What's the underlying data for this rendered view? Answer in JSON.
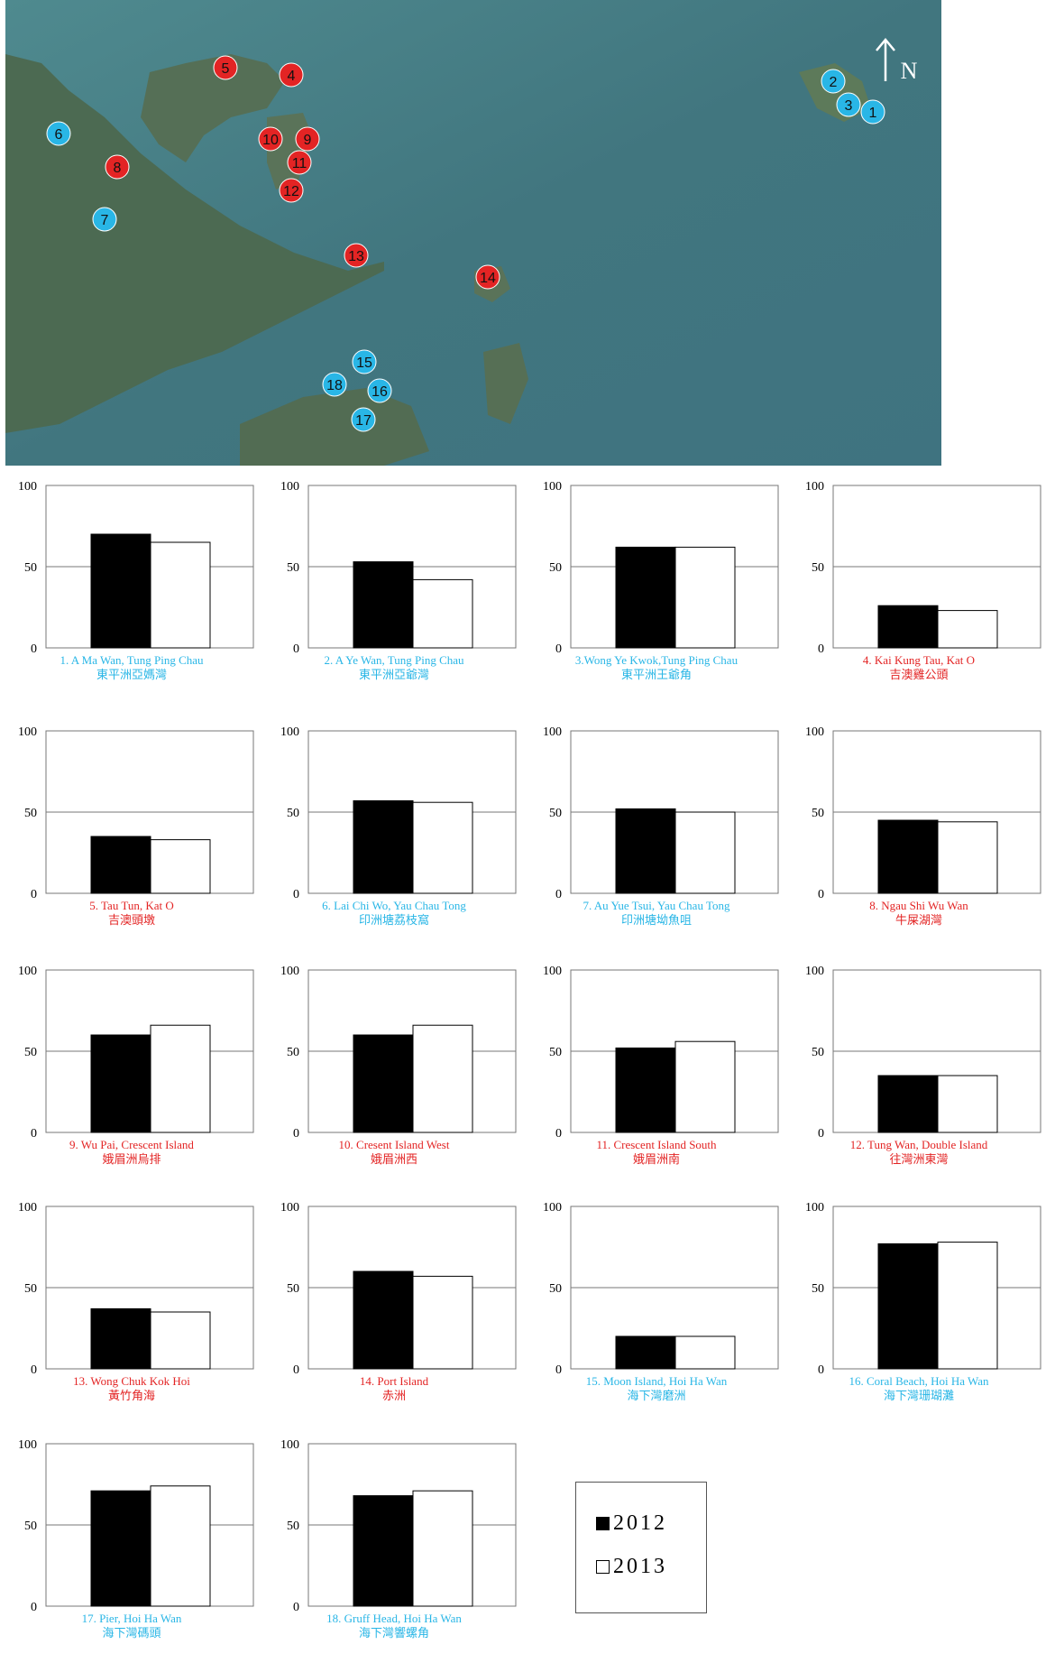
{
  "map": {
    "north_label": "N",
    "markers": [
      {
        "n": "1",
        "color": "#29b6e6"
      },
      {
        "n": "2",
        "color": "#29b6e6"
      },
      {
        "n": "3",
        "color": "#29b6e6"
      },
      {
        "n": "4",
        "color": "#e32424"
      },
      {
        "n": "5",
        "color": "#e32424"
      },
      {
        "n": "6",
        "color": "#29b6e6"
      },
      {
        "n": "7",
        "color": "#29b6e6"
      },
      {
        "n": "8",
        "color": "#e32424"
      },
      {
        "n": "9",
        "color": "#e32424"
      },
      {
        "n": "10",
        "color": "#e32424"
      },
      {
        "n": "11",
        "color": "#e32424"
      },
      {
        "n": "12",
        "color": "#e32424"
      },
      {
        "n": "13",
        "color": "#e32424"
      },
      {
        "n": "14",
        "color": "#e32424"
      },
      {
        "n": "15",
        "color": "#29b6e6"
      },
      {
        "n": "16",
        "color": "#29b6e6"
      },
      {
        "n": "17",
        "color": "#29b6e6"
      },
      {
        "n": "18",
        "color": "#29b6e6"
      }
    ]
  },
  "colors": {
    "blue_label": "#29b6e6",
    "red_label": "#e32424"
  },
  "chart_data": [
    {
      "type": "bar",
      "caption_en": "1. A Ma Wan, Tung Ping Chau",
      "caption_zh": "東平洲亞媽灣",
      "label_color": "blue",
      "ylim": [
        0,
        100
      ],
      "yticks": [
        0,
        50,
        100
      ],
      "values": {
        "2012": 70,
        "2013": 65
      }
    },
    {
      "type": "bar",
      "caption_en": "2. A Ye Wan, Tung Ping Chau",
      "caption_zh": "東平洲亞爺灣",
      "label_color": "blue",
      "ylim": [
        0,
        100
      ],
      "yticks": [
        0,
        50,
        100
      ],
      "values": {
        "2012": 53,
        "2013": 42
      }
    },
    {
      "type": "bar",
      "caption_en": "3.Wong Ye Kwok,Tung Ping Chau",
      "caption_zh": "東平洲王爺角",
      "label_color": "blue",
      "ylim": [
        0,
        100
      ],
      "yticks": [
        0,
        50,
        100
      ],
      "values": {
        "2012": 62,
        "2013": 62
      }
    },
    {
      "type": "bar",
      "caption_en": "4. Kai Kung Tau, Kat O",
      "caption_zh": "吉澳雞公頭",
      "label_color": "red",
      "ylim": [
        0,
        100
      ],
      "yticks": [
        0,
        50,
        100
      ],
      "values": {
        "2012": 26,
        "2013": 23
      }
    },
    {
      "type": "bar",
      "caption_en": "5. Tau Tun, Kat O",
      "caption_zh": "吉澳頭墩",
      "label_color": "red",
      "ylim": [
        0,
        100
      ],
      "yticks": [
        0,
        50,
        100
      ],
      "values": {
        "2012": 35,
        "2013": 33
      }
    },
    {
      "type": "bar",
      "caption_en": "6. Lai Chi Wo, Yau Chau Tong",
      "caption_zh": "印洲塘荔枝窩",
      "label_color": "blue",
      "ylim": [
        0,
        100
      ],
      "yticks": [
        0,
        50,
        100
      ],
      "values": {
        "2012": 57,
        "2013": 56
      }
    },
    {
      "type": "bar",
      "caption_en": "7. Au Yue Tsui, Yau Chau Tong",
      "caption_zh": "印洲塘坳魚咀",
      "label_color": "blue",
      "ylim": [
        0,
        100
      ],
      "yticks": [
        0,
        50,
        100
      ],
      "values": {
        "2012": 52,
        "2013": 50
      }
    },
    {
      "type": "bar",
      "caption_en": "8. Ngau Shi Wu Wan",
      "caption_zh": "牛屎湖灣",
      "label_color": "red",
      "ylim": [
        0,
        100
      ],
      "yticks": [
        0,
        50,
        100
      ],
      "values": {
        "2012": 45,
        "2013": 44
      }
    },
    {
      "type": "bar",
      "caption_en": "9. Wu Pai, Crescent Island",
      "caption_zh": "娥眉洲烏排",
      "label_color": "red",
      "ylim": [
        0,
        100
      ],
      "yticks": [
        0,
        50,
        100
      ],
      "values": {
        "2012": 60,
        "2013": 66
      }
    },
    {
      "type": "bar",
      "caption_en": "10. Cresent Island West",
      "caption_zh": "娥眉洲西",
      "label_color": "red",
      "ylim": [
        0,
        100
      ],
      "yticks": [
        0,
        50,
        100
      ],
      "values": {
        "2012": 60,
        "2013": 66
      }
    },
    {
      "type": "bar",
      "caption_en": "11. Crescent Island South",
      "caption_zh": "娥眉洲南",
      "label_color": "red",
      "ylim": [
        0,
        100
      ],
      "yticks": [
        0,
        50,
        100
      ],
      "values": {
        "2012": 52,
        "2013": 56
      }
    },
    {
      "type": "bar",
      "caption_en": "12. Tung Wan, Double Island",
      "caption_zh": "往灣洲東灣",
      "label_color": "red",
      "ylim": [
        0,
        100
      ],
      "yticks": [
        0,
        50,
        100
      ],
      "values": {
        "2012": 35,
        "2013": 35
      }
    },
    {
      "type": "bar",
      "caption_en": "13. Wong Chuk Kok Hoi",
      "caption_zh": "黃竹角海",
      "label_color": "red",
      "ylim": [
        0,
        100
      ],
      "yticks": [
        0,
        50,
        100
      ],
      "values": {
        "2012": 37,
        "2013": 35
      }
    },
    {
      "type": "bar",
      "caption_en": "14. Port Island",
      "caption_zh": "赤洲",
      "label_color": "red",
      "ylim": [
        0,
        100
      ],
      "yticks": [
        0,
        50,
        100
      ],
      "values": {
        "2012": 60,
        "2013": 57
      }
    },
    {
      "type": "bar",
      "caption_en": "15. Moon Island, Hoi Ha Wan",
      "caption_zh": "海下灣磨洲",
      "label_color": "blue",
      "ylim": [
        0,
        100
      ],
      "yticks": [
        0,
        50,
        100
      ],
      "values": {
        "2012": 20,
        "2013": 20
      }
    },
    {
      "type": "bar",
      "caption_en": "16. Coral Beach, Hoi Ha Wan",
      "caption_zh": "海下灣珊瑚灘",
      "label_color": "blue",
      "ylim": [
        0,
        100
      ],
      "yticks": [
        0,
        50,
        100
      ],
      "values": {
        "2012": 77,
        "2013": 78
      }
    },
    {
      "type": "bar",
      "caption_en": "17. Pier, Hoi Ha Wan",
      "caption_zh": "海下灣碼頭",
      "label_color": "blue",
      "ylim": [
        0,
        100
      ],
      "yticks": [
        0,
        50,
        100
      ],
      "values": {
        "2012": 71,
        "2013": 74
      }
    },
    {
      "type": "bar",
      "caption_en": "18. Gruff Head, Hoi Ha Wan",
      "caption_zh": "海下灣響螺角",
      "label_color": "blue",
      "ylim": [
        0,
        100
      ],
      "yticks": [
        0,
        50,
        100
      ],
      "values": {
        "2012": 68,
        "2013": 71
      }
    }
  ],
  "legend": {
    "items": [
      {
        "label": "2012",
        "fill": "#000000"
      },
      {
        "label": "2013",
        "fill": "#ffffff"
      }
    ]
  }
}
